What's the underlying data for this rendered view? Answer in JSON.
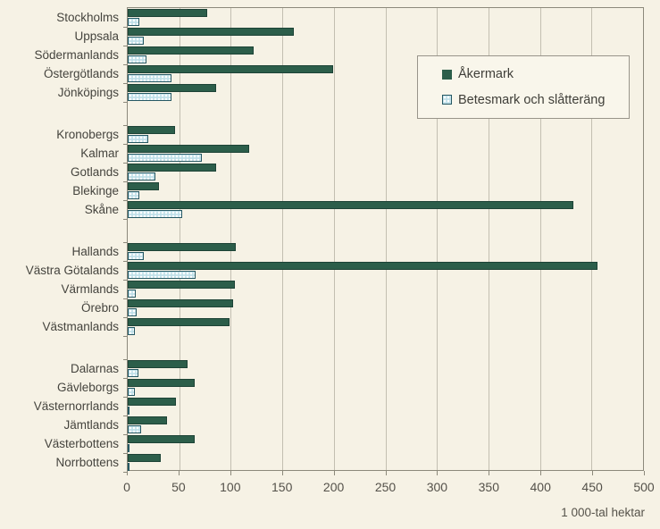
{
  "legend": {
    "items": [
      {
        "swatch": "solid-green-square",
        "label": "Åkermark"
      },
      {
        "swatch": "dotted-blue-square",
        "label": "Betesmark och slåtteräng"
      }
    ]
  },
  "colors": {
    "background": "#f6f2e5",
    "akermark_bar": "#2c5e4a",
    "betesmark_fill": "#bfe0e9",
    "betesmark_border": "#265863",
    "gridline": "#c3bfb1",
    "axis": "#8c897b",
    "text": "#45443e"
  },
  "chart_data": {
    "type": "bar",
    "orientation": "horizontal",
    "title": "",
    "xlabel": "1 000-tal hektar",
    "ylabel": "",
    "xlim": [
      0,
      500
    ],
    "xticks": [
      0,
      50,
      100,
      150,
      200,
      250,
      300,
      350,
      400,
      450,
      500
    ],
    "grid": true,
    "legend_position": "top-right",
    "series_names": [
      "Åkermark",
      "Betesmark och slåtteräng"
    ],
    "groups": [
      {
        "rows": [
          {
            "category": "Stockholms",
            "akermark": 77,
            "betesmark": 11
          },
          {
            "category": "Uppsala",
            "akermark": 161,
            "betesmark": 16
          },
          {
            "category": "Södermanlands",
            "akermark": 122,
            "betesmark": 18
          },
          {
            "category": "Östergötlands",
            "akermark": 199,
            "betesmark": 42
          },
          {
            "category": "Jönköpings",
            "akermark": 86,
            "betesmark": 42
          }
        ]
      },
      {
        "rows": [
          {
            "category": "Kronobergs",
            "akermark": 46,
            "betesmark": 20
          },
          {
            "category": "Kalmar",
            "akermark": 118,
            "betesmark": 72
          },
          {
            "category": "Gotlands",
            "akermark": 86,
            "betesmark": 27
          },
          {
            "category": "Blekinge",
            "akermark": 30,
            "betesmark": 11
          },
          {
            "category": "Skåne",
            "akermark": 432,
            "betesmark": 53
          }
        ]
      },
      {
        "rows": [
          {
            "category": "Hallands",
            "akermark": 105,
            "betesmark": 16
          },
          {
            "category": "Västra Götalands",
            "akermark": 455,
            "betesmark": 66
          },
          {
            "category": "Värmlands",
            "akermark": 104,
            "betesmark": 8
          },
          {
            "category": "Örebro",
            "akermark": 102,
            "betesmark": 9
          },
          {
            "category": "Västmanlands",
            "akermark": 99,
            "betesmark": 7
          }
        ]
      },
      {
        "rows": [
          {
            "category": "Dalarnas",
            "akermark": 58,
            "betesmark": 10
          },
          {
            "category": "Gävleborgs",
            "akermark": 65,
            "betesmark": 7
          },
          {
            "category": "Västernorrlands",
            "akermark": 47,
            "betesmark": 2
          },
          {
            "category": "Jämtlands",
            "akermark": 38,
            "betesmark": 13
          },
          {
            "category": "Västerbottens",
            "akermark": 65,
            "betesmark": 2
          },
          {
            "category": "Norrbottens",
            "akermark": 32,
            "betesmark": 1
          }
        ]
      }
    ]
  }
}
